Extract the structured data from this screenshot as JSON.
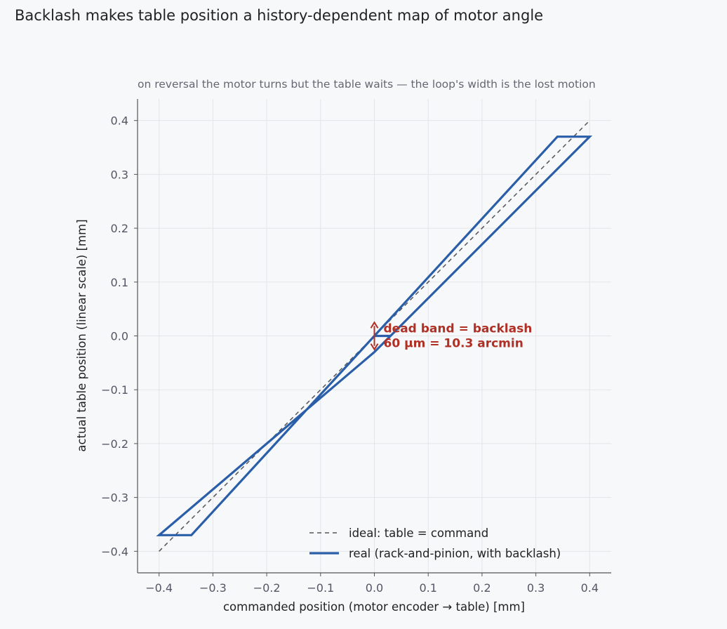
{
  "figure": {
    "title": "Backlash makes table position a history-dependent map of motor angle"
  },
  "chart_data": {
    "type": "line",
    "subtitle": "on reversal the motor turns but the table waits — the loop's width is the lost motion",
    "xlabel": "commanded position  (motor encoder → table)   [mm]",
    "ylabel": "actual table position  (linear scale)   [mm]",
    "xlim": [
      -0.44,
      0.44
    ],
    "ylim": [
      -0.44,
      0.44
    ],
    "xticks": [
      -0.4,
      -0.3,
      -0.2,
      -0.1,
      0.0,
      0.1,
      0.2,
      0.3,
      0.4
    ],
    "yticks": [
      -0.4,
      -0.3,
      -0.2,
      -0.1,
      0.0,
      0.1,
      0.2,
      0.3,
      0.4
    ],
    "xtick_labels": [
      "−0.4",
      "−0.3",
      "−0.2",
      "−0.1",
      "0.0",
      "0.1",
      "0.2",
      "0.3",
      "0.4"
    ],
    "ytick_labels": [
      "−0.4",
      "−0.3",
      "−0.2",
      "−0.1",
      "0.0",
      "0.1",
      "0.2",
      "0.3",
      "0.4"
    ],
    "grid": true,
    "legend_position": "bottom-right",
    "series": [
      {
        "name": "ideal: table = command",
        "style": "dashed",
        "color": "#555555",
        "x": [
          -0.4,
          0.4
        ],
        "y": [
          -0.4,
          0.4
        ]
      },
      {
        "name": "real (rack-and-pinion, with backlash)",
        "style": "solid",
        "color": "#2a5ea8",
        "segments": [
          {
            "x": [
              0.0,
              0.03,
              0.4,
              0.34,
              -0.34,
              -0.4,
              0.0
            ],
            "y": [
              -0.03,
              0.0,
              0.37,
              0.37,
              -0.37,
              -0.37,
              -0.03
            ]
          },
          {
            "x": [
              0.0,
              0.03
            ],
            "y": [
              0.0,
              0.0
            ]
          }
        ]
      }
    ],
    "annotation": {
      "line1": "dead band = backlash",
      "line2": "60 µm  =  10.3 arcmin",
      "arrow_x": 0.0,
      "arrow_y": [
        -0.025,
        0.025
      ],
      "color": "#b03025"
    }
  }
}
